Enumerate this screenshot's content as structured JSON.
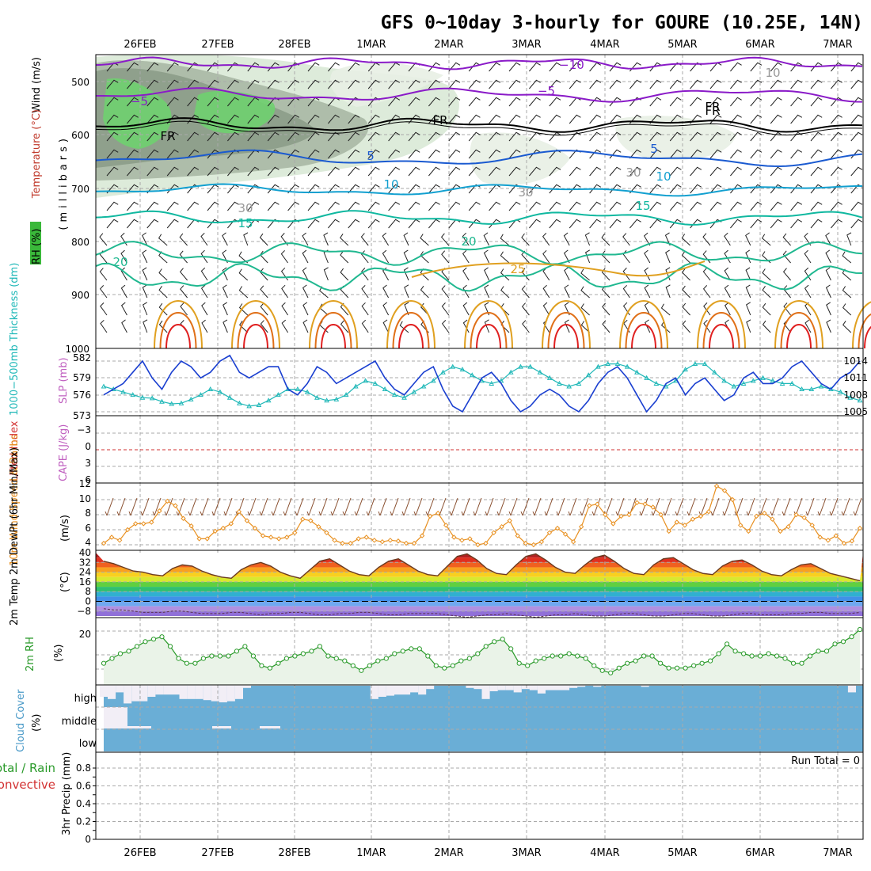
{
  "title": "GFS 0~10day 3-hourly for GOURE (10.25E, 14N)",
  "colors": {
    "slp": "#1a3fd0",
    "thick": "#20b8b8",
    "wind": "#e89020",
    "temp": "#e05018",
    "rh": "#2a9a2a",
    "cloud": "#6aaed6",
    "cloudlight": "#f2eef6",
    "li": "#d23030",
    "cape": "#c060c0",
    "purple": "#8a1ac8",
    "blue": "#1a5ad0",
    "cyan": "#12a0d0",
    "teal": "#10b8a0",
    "green": "#20b890",
    "orange": "#e0a020",
    "red": "#e02020",
    "rhfill": "#eaf3e8"
  },
  "dates": [
    "26FEB",
    "27FEB",
    "28FEB",
    "1MAR",
    "2MAR",
    "3MAR",
    "4MAR",
    "5MAR",
    "6MAR",
    "7MAR"
  ],
  "upper": {
    "ylabel_wind": "Wind (m/s)",
    "ylabel_temp": "Temperature (°C)",
    "ylabel_mb": "(millibars)",
    "rh_label": "RH (%)",
    "pressure_ticks": [
      "500",
      "600",
      "700",
      "800",
      "900",
      "1000"
    ],
    "contour_labels": [
      "−10",
      "−5",
      "−5",
      "FR",
      "FR",
      "FR",
      "FR",
      "5",
      "5",
      "10",
      "10",
      "15",
      "15",
      "20",
      "20",
      "25",
      "10",
      "30",
      "30",
      "30"
    ]
  },
  "slp_panel": {
    "ylabel_thick": "1000−500mb Thickness (dm)",
    "ylabel_slp": "SLP (mb)",
    "thick_ticks": [
      "582",
      "579",
      "576",
      "573"
    ],
    "slp_ticks": [
      "1014",
      "1011",
      "1008",
      "1005"
    ]
  },
  "li_panel": {
    "ylabel_li": "Lifted Index",
    "ylabel_cape": "CAPE (J/kg)",
    "li_ticks": [
      "−3",
      "0",
      "3",
      "6"
    ]
  },
  "wind_panel": {
    "ylabel": "10m Wind Speed & Barbs",
    "ylabel_units": "(m/s)",
    "ticks": [
      "12",
      "10",
      "8",
      "6",
      "4"
    ]
  },
  "temp_panel": {
    "ylabel": "2m Temp 2m DewPt (6hr Min/Max)",
    "ylabel_units": "(°C)",
    "ticks": [
      "40",
      "32",
      "24",
      "16",
      "8",
      "0",
      "−8"
    ]
  },
  "rh_panel": {
    "ylabel": "2m RH",
    "ylabel_units": "(%)",
    "ticks": [
      "20"
    ]
  },
  "cloud_panel": {
    "ylabel": "Cloud Cover",
    "ylabel_units": "(%)",
    "levels": [
      "high",
      "middle",
      "low"
    ]
  },
  "precip_panel": {
    "ylabel_total": "Total / Rain",
    "ylabel_conv": "Convective",
    "ylabel": "3hr Precip (mm)",
    "ticks": [
      "0.8",
      "0.6",
      "0.4",
      "0.2",
      "0"
    ],
    "run_total": "Run Total = 0"
  },
  "chart_data": {
    "type": "line",
    "title": "GFS 0~10day 3-hourly for GOURE (10.25E, 14N)",
    "x_dates": [
      "26FEB",
      "27FEB",
      "28FEB",
      "1MAR",
      "2MAR",
      "3MAR",
      "4MAR",
      "5MAR",
      "6MAR",
      "7MAR"
    ],
    "slp_mb": [
      1008,
      1009,
      1010,
      1012,
      1014,
      1011,
      1009,
      1012,
      1014,
      1013,
      1011,
      1012,
      1014,
      1015,
      1012,
      1011,
      1012,
      1013,
      1013,
      1009,
      1008,
      1010,
      1013,
      1012,
      1010,
      1011,
      1012,
      1013,
      1014,
      1011,
      1009,
      1008,
      1010,
      1012,
      1013,
      1009,
      1006,
      1005,
      1008,
      1011,
      1012,
      1010,
      1007,
      1005,
      1006,
      1008,
      1009,
      1008,
      1006,
      1005,
      1007,
      1010,
      1012,
      1013,
      1011,
      1008,
      1005,
      1007,
      1010,
      1011,
      1008,
      1010,
      1011,
      1009,
      1007,
      1008,
      1011,
      1012,
      1010,
      1010,
      1011,
      1013,
      1014,
      1012,
      1010,
      1009,
      1011,
      1012,
      1014
    ],
    "thick_dm": [
      577.5,
      577.0,
      576.5,
      576.0,
      575.5,
      575.4,
      574.8,
      574.4,
      574.5,
      575.2,
      576.0,
      577.0,
      576.5,
      575.5,
      574.5,
      574.0,
      574.2,
      575.0,
      576.0,
      577.0,
      577.0,
      576.5,
      575.5,
      575.0,
      575.2,
      576.0,
      577.5,
      578.5,
      578.0,
      577.0,
      576.0,
      575.5,
      576.5,
      577.5,
      578.5,
      580.0,
      581.0,
      580.5,
      579.5,
      578.5,
      578.0,
      578.5,
      580.0,
      581.0,
      581.0,
      580.0,
      579.0,
      578.0,
      577.5,
      578.0,
      579.5,
      581.0,
      581.5,
      581.5,
      581.0,
      580.0,
      579.0,
      578.0,
      577.5,
      578.5,
      580.5,
      581.5,
      581.5,
      580.0,
      578.5,
      577.5,
      578.0,
      578.5,
      579.0,
      578.5,
      578.0,
      578.0,
      577.0,
      577.0,
      577.5,
      577.0,
      576.5,
      575.5,
      575.0
    ],
    "wind10m_ms": [
      4.2,
      5,
      4.6,
      6,
      6.8,
      6.8,
      7,
      8.5,
      9.8,
      9.2,
      7.5,
      6.5,
      4.8,
      4.8,
      5.8,
      6.2,
      6.8,
      8.4,
      7.2,
      6.2,
      5.2,
      5,
      4.8,
      5,
      5.6,
      7.4,
      7.2,
      6.4,
      5.6,
      4.6,
      4.2,
      4.2,
      4.8,
      5,
      4.6,
      4.4,
      4.6,
      4.5,
      4.2,
      4.2,
      5.2,
      7.8,
      8.2,
      6.6,
      5,
      4.6,
      4.8,
      4,
      4.2,
      5.6,
      6.4,
      7.2,
      5.2,
      4.2,
      4,
      4.4,
      5.6,
      6.2,
      5.4,
      4.4,
      6.4,
      9.2,
      9.4,
      8,
      6.8,
      7.8,
      8,
      9.6,
      9.4,
      9,
      8,
      5.8,
      7,
      6.6,
      7.4,
      7.8,
      8.4,
      11.8,
      11.2,
      10,
      6.6,
      5.8,
      7.8,
      8.2,
      7.4,
      5.8,
      6.4,
      8,
      7.6,
      6.6,
      5,
      4.6,
      5.2,
      4.2,
      4.5,
      6.2
    ],
    "temp_c": [
      33,
      31,
      28,
      25,
      24,
      22,
      21,
      27,
      30,
      29,
      25,
      22,
      20,
      19,
      26,
      30,
      32,
      29,
      24,
      21,
      19,
      26,
      33,
      35,
      30,
      25,
      22,
      21,
      28,
      33,
      35,
      30,
      25,
      22,
      21,
      29,
      37,
      39,
      34,
      27,
      23,
      22,
      30,
      37,
      39,
      34,
      28,
      24,
      23,
      30,
      36,
      38,
      33,
      27,
      23,
      22,
      30,
      35,
      36,
      31,
      26,
      23,
      22,
      29,
      33,
      34,
      30,
      25,
      22,
      21,
      26,
      30,
      31,
      27,
      23,
      21,
      19,
      17
    ],
    "dewpt_c": [
      -6,
      -7,
      -7,
      -8,
      -9,
      -9,
      -9,
      -8,
      -8,
      -9,
      -10,
      -10,
      -10,
      -9,
      -9,
      -10,
      -11,
      -10,
      -10,
      -9,
      -9,
      -10,
      -11,
      -11,
      -10,
      -10,
      -9,
      -9,
      -10,
      -11,
      -11,
      -10,
      -10,
      -10,
      -10,
      -11,
      -12,
      -13,
      -12,
      -11,
      -11,
      -10,
      -11,
      -12,
      -13,
      -12,
      -11,
      -11,
      -10,
      -11,
      -12,
      -12,
      -11,
      -10,
      -10,
      -11,
      -12,
      -12,
      -11,
      -10,
      -10,
      -11,
      -12,
      -12,
      -11,
      -10,
      -10,
      -11,
      -11,
      -11,
      -10,
      -10,
      -9,
      -9,
      -10,
      -10,
      -10,
      -9
    ],
    "rh2m_pct": [
      8,
      10,
      12,
      13,
      15,
      17,
      18,
      19,
      15,
      10,
      8,
      8,
      10,
      11,
      11,
      11,
      13,
      15,
      11,
      7,
      6,
      8,
      10,
      11,
      12,
      13,
      15,
      11,
      10,
      9,
      7,
      5,
      7,
      9,
      10,
      12,
      13,
      14,
      14,
      11,
      7,
      6,
      7,
      9,
      10,
      12,
      15,
      17,
      18,
      14,
      8,
      7,
      9,
      10,
      11,
      11,
      12,
      11,
      10,
      7,
      5,
      4,
      6,
      8,
      9,
      11,
      11,
      8,
      6,
      6,
      6,
      7,
      8,
      9,
      12,
      16,
      13,
      12,
      11,
      11,
      12,
      11,
      10,
      8,
      8,
      11,
      13,
      13,
      16,
      17,
      19,
      22
    ],
    "cloud_high_pct": [
      50,
      60,
      30,
      80,
      70,
      70,
      50,
      40,
      40,
      40,
      60,
      60,
      60,
      65,
      70,
      75,
      70,
      60,
      10,
      0,
      0,
      0,
      0,
      0,
      0,
      0,
      0,
      0,
      0,
      0,
      0,
      0,
      0,
      0,
      60,
      50,
      45,
      40,
      40,
      30,
      40,
      15,
      0,
      0,
      0,
      0,
      10,
      15,
      60,
      25,
      20,
      20,
      30,
      15,
      20,
      35,
      20,
      20,
      20,
      10,
      5,
      0,
      5,
      0,
      0,
      0,
      0,
      0,
      5,
      0,
      0,
      0,
      0,
      0,
      0,
      0,
      0,
      0,
      0,
      0,
      0,
      0,
      0,
      0,
      0,
      0,
      0,
      0,
      0,
      0,
      0,
      0,
      0,
      0,
      30,
      0
    ],
    "precip_mm": [
      0,
      0,
      0,
      0,
      0,
      0,
      0,
      0,
      0,
      0
    ],
    "lifted_index": [],
    "ylim_slp": [
      1004,
      1016
    ],
    "ylim_thick": [
      573,
      583
    ]
  }
}
